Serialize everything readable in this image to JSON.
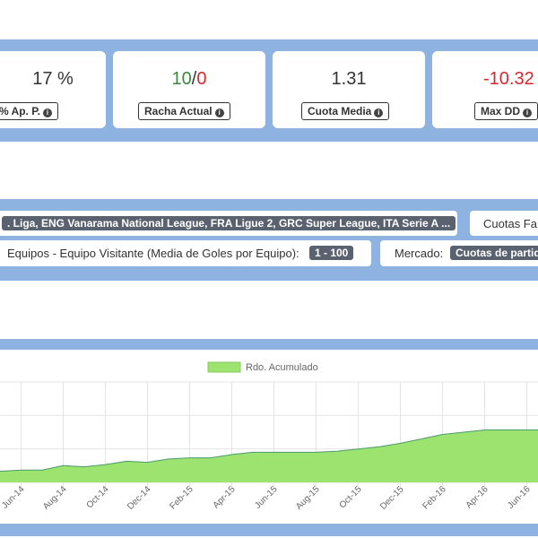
{
  "stats": [
    {
      "value": "17 %",
      "label": "% Ap. P."
    },
    {
      "value_pos": "10",
      "value_sep": "/",
      "value_neg": "0",
      "label": "Racha Actual"
    },
    {
      "value": "1.31",
      "label": "Cuota Media"
    },
    {
      "value": "-10.32",
      "label": "Max DD"
    }
  ],
  "filters": {
    "leagues": ". Liga, ENG Vanarama National League, FRA Ligue 2, GRC Super League, ITA Serie A ...",
    "odds_label": "Cuotas Fa",
    "teams_label": "Equipos - Equipo Visitante (Media de Goles por Equipo):",
    "teams_value": "1 - 100",
    "market_label": "Mercado:",
    "market_value": "Cuotas de partid"
  },
  "colors": {
    "band": "#8fb3e0",
    "area_fill": "#9de36f",
    "area_line": "#4a9a6a",
    "positive": "#3a8a3a",
    "negative": "#d9262c"
  },
  "chart_data": {
    "type": "area",
    "legend": "Rdo. Acumulado",
    "legend_position": "top-center",
    "grid": true,
    "x": [
      "May-14",
      "Jun-14",
      "Jul-14",
      "Aug-14",
      "Sep-14",
      "Oct-14",
      "Nov-14",
      "Dec-14",
      "Jan-15",
      "Feb-15",
      "Mar-15",
      "Apr-15",
      "May-15",
      "Jun-15",
      "Jul-15",
      "Aug-15",
      "Sep-15",
      "Oct-15",
      "Nov-15",
      "Dec-15",
      "Jan-16",
      "Feb-16",
      "Mar-16",
      "Apr-16",
      "May-16",
      "Jun-16",
      "Jul-16"
    ],
    "x_tick_labels": [
      "Jun-14",
      "Aug-14",
      "Oct-14",
      "Dec-14",
      "Feb-15",
      "Apr-15",
      "Jun-15",
      "Aug-15",
      "Oct-15",
      "Dec-15",
      "Feb-16",
      "Apr-16",
      "Jun-16"
    ],
    "series": [
      {
        "name": "Rdo. Acumulado",
        "values": [
          0.0,
          0.1,
          0.1,
          0.5,
          0.4,
          0.6,
          0.9,
          0.8,
          1.1,
          1.2,
          1.2,
          1.5,
          1.7,
          1.7,
          1.7,
          1.7,
          1.8,
          2.0,
          2.2,
          2.5,
          2.9,
          3.3,
          3.5,
          3.7,
          3.7,
          3.7,
          3.7
        ]
      }
    ],
    "ylim": [
      -1,
      8
    ]
  }
}
